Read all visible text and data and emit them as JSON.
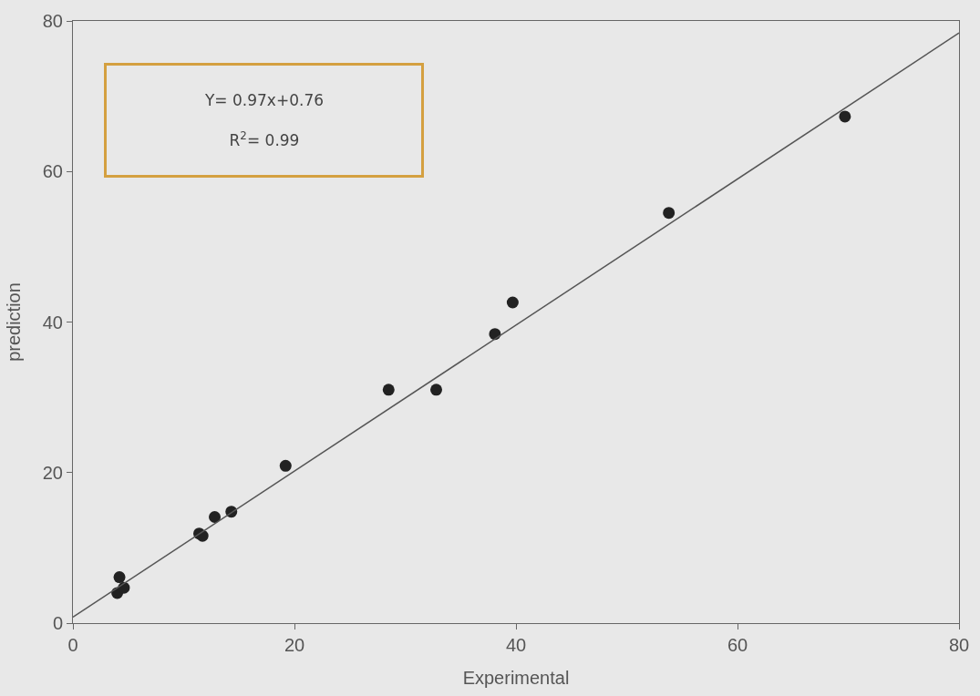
{
  "chart_data": {
    "type": "scatter",
    "xlabel": "Experimental",
    "ylabel": "prediction",
    "annotations": [
      "Y= 0.97x+0.76",
      "R$^{2}$= 0.99"
    ],
    "series": [
      {
        "color": "#222222",
        "marker": "circle",
        "x": [
          4.0,
          4.2,
          4.6,
          11.4,
          11.7,
          12.8,
          14.3,
          19.2,
          28.5,
          32.8,
          38.1,
          39.7,
          53.8,
          69.7
        ],
        "values": [
          4.0,
          6.1,
          4.7,
          11.9,
          11.6,
          14.1,
          14.8,
          20.9,
          31.0,
          31.0,
          38.4,
          42.6,
          54.5,
          67.3
        ]
      },
      {
        "type": "line",
        "color": "#555555",
        "marker": "none",
        "line_style": "solid",
        "x": [
          0,
          80
        ],
        "values": [
          0.8,
          78.4
        ]
      }
    ],
    "xlim": [
      0,
      80
    ],
    "ylim": [
      0,
      80
    ],
    "xticks": [
      0,
      20,
      40,
      60,
      80
    ],
    "yticks": [
      0,
      20,
      40,
      60,
      80
    ],
    "grid": false
  }
}
